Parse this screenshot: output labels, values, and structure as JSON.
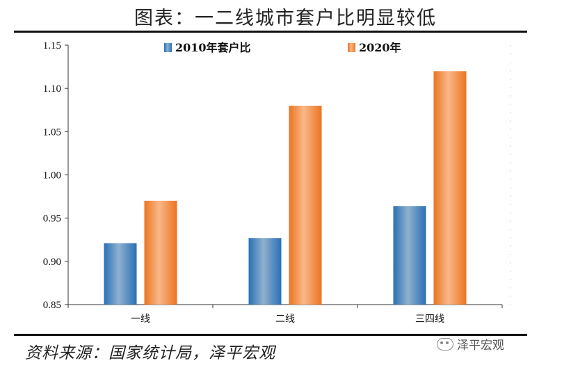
{
  "header": {
    "title": "图表：一二线城市套户比明显较低"
  },
  "footer": {
    "source": "资料来源：国家统计局，泽平宏观",
    "watermark": "泽平宏观",
    "watermark_icon": "wechat-icon"
  },
  "colors": {
    "series_2010": "#2f73b8",
    "series_2020": "#ee7a22",
    "axis": "#333333"
  },
  "chart_data": {
    "type": "bar",
    "categories": [
      "一线",
      "二线",
      "三四线"
    ],
    "series": [
      {
        "name": "2010年套户比",
        "values": [
          0.921,
          0.927,
          0.964
        ]
      },
      {
        "name": "2020年",
        "values": [
          0.97,
          1.08,
          1.12
        ]
      }
    ],
    "y_ticks": [
      "0.85",
      "0.90",
      "0.95",
      "1.00",
      "1.05",
      "1.10",
      "1.15"
    ],
    "ylim": [
      0.85,
      1.15
    ],
    "legend_position": "top-center",
    "grid": false
  }
}
